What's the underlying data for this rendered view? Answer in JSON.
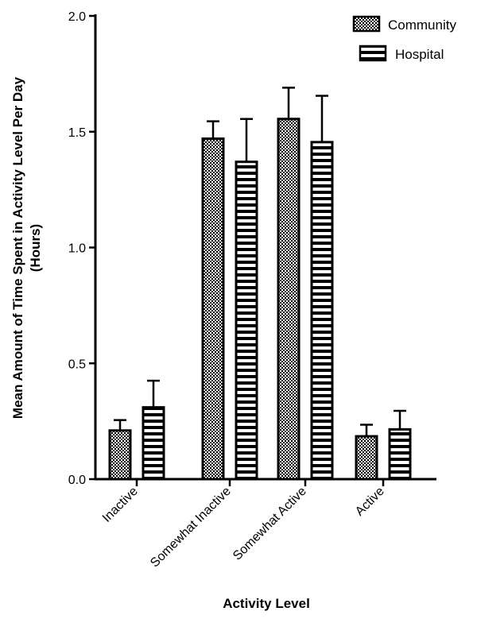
{
  "chart_data": {
    "type": "bar",
    "title": "",
    "xlabel": "Activity Level",
    "ylabel_lines": [
      "Mean Amount of Time Spent in Activity Level Per Day",
      "(Hours)"
    ],
    "ylim": [
      0,
      2.0
    ],
    "yticks": [
      "0.0",
      "0.5",
      "1.0",
      "1.5",
      "2.0"
    ],
    "categories": [
      "Inactive",
      "Somewhat Inactive",
      "Somewhat Active",
      "Active"
    ],
    "series": [
      {
        "name": "Community",
        "pattern": "checker",
        "values": [
          0.21,
          1.47,
          1.555,
          0.185
        ],
        "errors": [
          0.045,
          0.075,
          0.135,
          0.05
        ]
      },
      {
        "name": "Hospital",
        "pattern": "horizontal-stripes",
        "values": [
          0.31,
          1.37,
          1.455,
          0.215
        ],
        "errors": [
          0.115,
          0.185,
          0.2,
          0.08
        ]
      }
    ],
    "legend": "top-right",
    "grid": false
  }
}
